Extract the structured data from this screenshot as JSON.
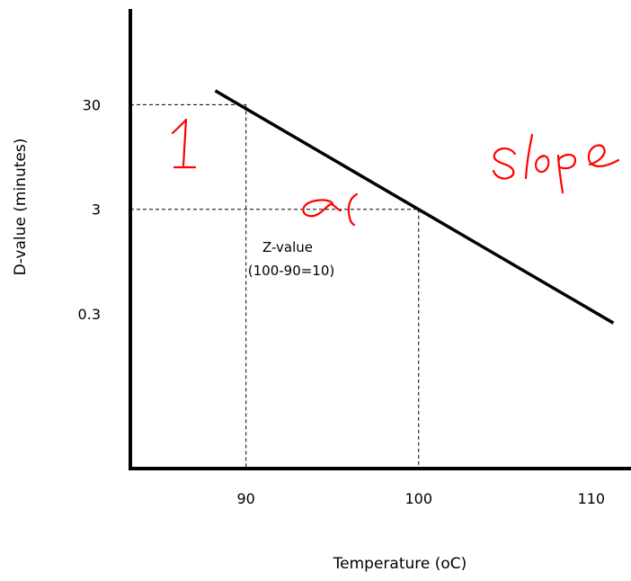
{
  "chart_data": {
    "type": "line",
    "title": "",
    "xlabel": "Temperature (oC)",
    "ylabel": "D-value (minutes)",
    "x_ticks": [
      {
        "value": 90,
        "label": "90"
      },
      {
        "value": 100,
        "label": "100"
      },
      {
        "value": 110,
        "label": "110"
      }
    ],
    "y_ticks": [
      {
        "value": 30,
        "label": "30"
      },
      {
        "value": 3,
        "label": "3"
      },
      {
        "value": 0.3,
        "label": "0.3"
      }
    ],
    "y_scale": "log",
    "xlim": [
      83.3,
      112.3
    ],
    "ylim": [
      0.01,
      300
    ],
    "grid": false,
    "series": [
      {
        "x": [
          88.3,
          111.2
        ],
        "y": [
          40,
          0.25
        ],
        "color": "#000000"
      }
    ],
    "reference_points": [
      {
        "x": 90,
        "y": 30
      },
      {
        "x": 100,
        "y": 3
      }
    ],
    "annotations": {
      "z_label": "Z-value",
      "z_calc": "(100-90=10)"
    }
  },
  "handwriting": {
    "slope": "Slope",
    "one": "1",
    "alpha": "α",
    "color": "#ff0000"
  }
}
